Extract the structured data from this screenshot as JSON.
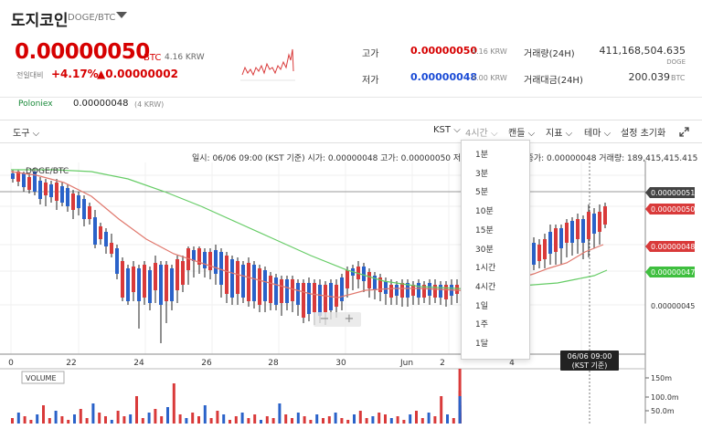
{
  "header": {
    "coin_name": "도지코인",
    "pair": "DOGE/BTC",
    "price": "0.00000050",
    "price_unit": "BTC",
    "price_krw": "4.16 KRW",
    "change_label": "전일대비",
    "change_pct": "+4.17%",
    "change_abs": "▲0.00000002"
  },
  "stats": {
    "high_label": "고가",
    "high_value": "0.00000050",
    "high_krw": "4.16 KRW",
    "low_label": "저가",
    "low_value": "0.00000048",
    "low_krw": "4.00 KRW",
    "volume_label": "거래량(24H)",
    "volume_value": "411,168,504.635",
    "volume_unit": "DOGE",
    "amount_label": "거래대금(24H)",
    "amount_value": "200.039",
    "amount_unit": "BTC"
  },
  "exchange": {
    "name": "Poloniex",
    "price": "0.00000048",
    "krw": "(4 KRW)"
  },
  "toolbar": {
    "tools": "도구",
    "currency": "KST",
    "interval": "4시간",
    "candle": "캔들",
    "indicator": "지표",
    "theme": "테마",
    "reset": "설정 초기화"
  },
  "info_line": "일시: 06/06 09:00 (KST 기준)  시가: 0.00000048  고가: 0.00000050  저가: 0.00000048  종가: 0.00000048  거래량: 189,415,415.415",
  "interval_menu": [
    "1분",
    "3분",
    "5분",
    "10분",
    "15분",
    "30분",
    "1시간",
    "4시간",
    "1일",
    "1주",
    "1달"
  ],
  "chart_data": {
    "type": "candlestick",
    "symbol_label": "DOGE/BTC",
    "x_ticks": [
      "0",
      "22",
      "24",
      "26",
      "28",
      "30",
      "Jun",
      "2",
      "4"
    ],
    "y_ticks": [
      "0.00000051",
      "0.00000050",
      "0.00000048",
      "0.00000047",
      "0.00000045"
    ],
    "crosshair_x_label": "06/06 09:00\n(KST 기준)",
    "volume_label": "VOLUME",
    "volume_ticks": [
      "150m",
      "100.0m",
      "50.0m"
    ],
    "colors": {
      "up": "#d93a3a",
      "down": "#2a62c9",
      "ma_short": "#e0776c",
      "ma_long": "#66cc66"
    }
  }
}
